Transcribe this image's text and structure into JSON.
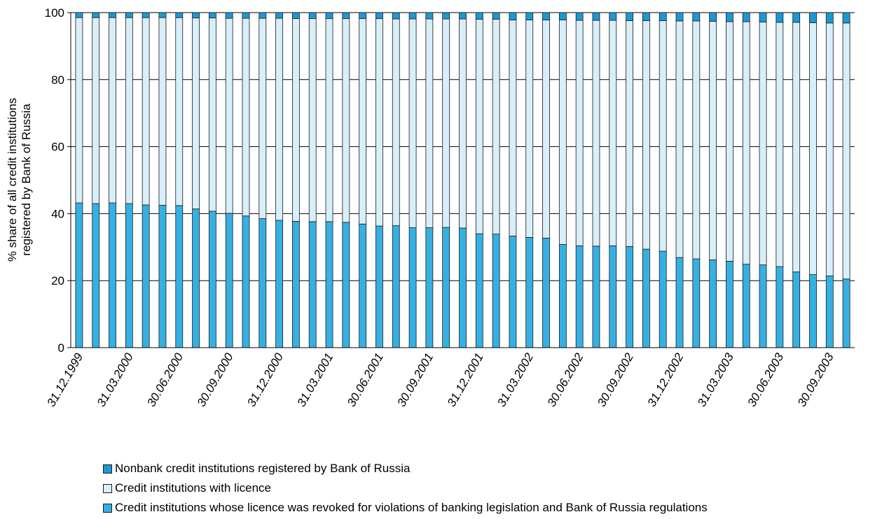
{
  "chart_data": {
    "type": "bar",
    "stacked": true,
    "ylabel": "% share of all credit institutions registered by Bank of Russia",
    "ylim": [
      0,
      100
    ],
    "yticks": [
      0,
      20,
      40,
      60,
      80,
      100
    ],
    "grid": true,
    "legend_position": "bottom",
    "x_tick_labels": [
      "31.12.1999",
      "31.03.2000",
      "30.06.2000",
      "30.09.2000",
      "31.12.2000",
      "31.03.2001",
      "30.06.2001",
      "30.09.2001",
      "31.12.2001",
      "31.03.2002",
      "30.06.2002",
      "30.09.2002",
      "31.12.2002",
      "31.03.2003",
      "30.06.2003",
      "30.09.2003"
    ],
    "bar_count": 47,
    "series": [
      {
        "name": "Credit institutions whose licence was revoked for violations of banking legislation and Bank of Russia regulations",
        "color": "#36b0e2",
        "values": [
          43.2,
          43.0,
          43.2,
          43.0,
          42.6,
          42.5,
          42.4,
          41.4,
          40.7,
          40.1,
          39.3,
          38.5,
          38.0,
          37.7,
          37.6,
          37.6,
          37.4,
          36.9,
          36.3,
          36.4,
          35.8,
          35.8,
          35.9,
          35.7,
          34.0,
          33.9,
          33.3,
          32.9,
          32.7,
          30.8,
          30.4,
          30.3,
          30.4,
          30.2,
          29.4,
          28.8,
          26.9,
          26.5,
          26.2,
          25.8,
          24.9,
          24.7,
          24.2,
          22.6,
          21.8,
          21.4,
          20.5
        ]
      },
      {
        "name": "Credit institutions with licence",
        "color": "#d8eef9",
        "values": [
          55.3,
          55.5,
          55.3,
          55.5,
          55.9,
          56.0,
          56.1,
          57.0,
          57.7,
          58.2,
          59.0,
          59.8,
          60.3,
          60.5,
          60.6,
          60.6,
          60.8,
          61.3,
          61.9,
          61.7,
          62.3,
          62.3,
          62.2,
          62.4,
          64.0,
          64.1,
          64.5,
          64.9,
          65.1,
          67.0,
          67.3,
          67.4,
          67.3,
          67.4,
          68.2,
          68.8,
          70.6,
          71.0,
          71.2,
          71.5,
          72.4,
          72.5,
          72.9,
          74.5,
          75.2,
          75.5,
          76.4
        ]
      },
      {
        "name": "Nonbank credit institutions registered by Bank of Russia",
        "color": "#1c98d5",
        "values": [
          1.5,
          1.5,
          1.5,
          1.5,
          1.5,
          1.5,
          1.5,
          1.6,
          1.6,
          1.7,
          1.7,
          1.7,
          1.7,
          1.8,
          1.8,
          1.8,
          1.8,
          1.8,
          1.8,
          1.9,
          1.9,
          1.9,
          1.9,
          1.9,
          2.0,
          2.0,
          2.2,
          2.2,
          2.2,
          2.2,
          2.3,
          2.3,
          2.3,
          2.4,
          2.4,
          2.4,
          2.5,
          2.5,
          2.6,
          2.7,
          2.7,
          2.8,
          2.9,
          2.9,
          3.0,
          3.1,
          3.1
        ]
      }
    ],
    "legend": [
      {
        "label": "Nonbank credit institutions registered by Bank of Russia",
        "color": "#1c98d5"
      },
      {
        "label": "Credit institutions with licence",
        "color": "#d8eef9"
      },
      {
        "label": "Credit institutions whose licence was revoked for violations of banking legislation and Bank of Russia regulations",
        "color": "#36b0e2"
      }
    ]
  }
}
